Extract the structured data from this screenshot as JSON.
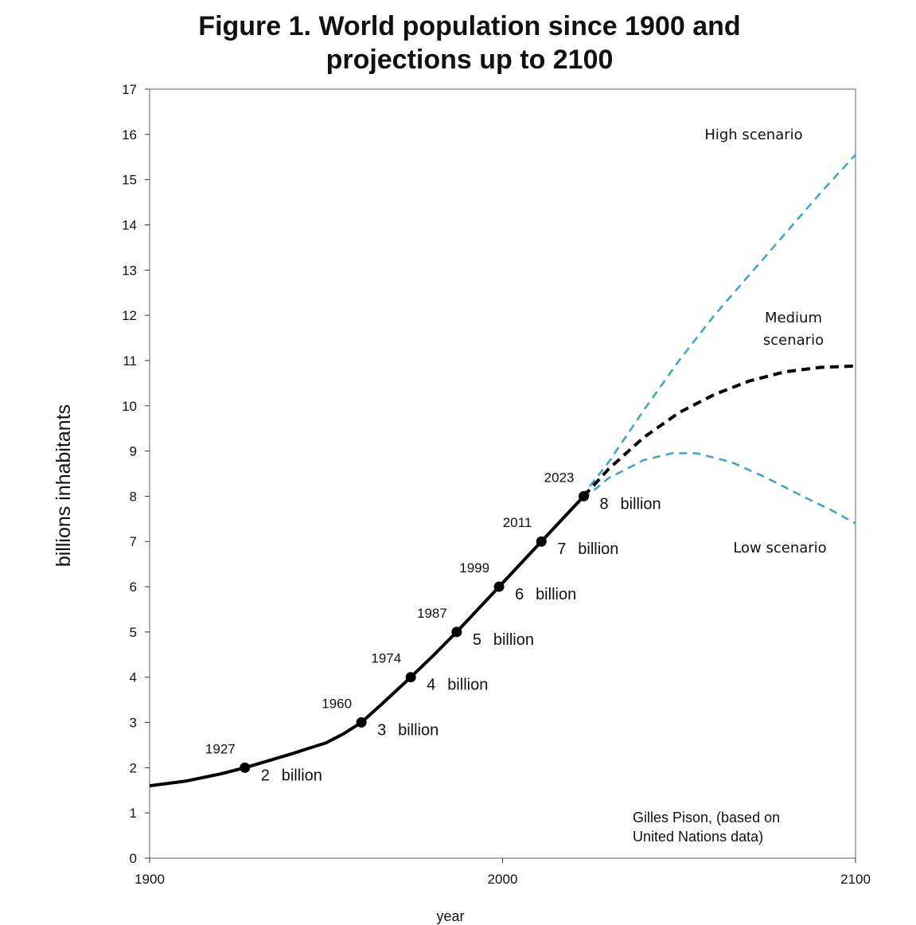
{
  "chart_data": {
    "type": "line",
    "title_line1": "Figure 1. World population since 1900 and",
    "title_line2": "projections up to 2100",
    "xlabel": "year",
    "ylabel": "billions inhabitants",
    "xlim": [
      1900,
      2100
    ],
    "ylim": [
      0,
      17
    ],
    "xticks": [
      "1900",
      "2000",
      "2100"
    ],
    "yticks": [
      "0",
      "1",
      "2",
      "3",
      "4",
      "5",
      "6",
      "7",
      "8",
      "9",
      "10",
      "11",
      "12",
      "13",
      "14",
      "15",
      "16",
      "17"
    ],
    "grid": false,
    "colors": {
      "historical": "#000000",
      "medium": "#000000",
      "high": "#3aa6c4",
      "low": "#3aa6c4"
    },
    "series": [
      {
        "style": "solid",
        "x": [
          1900,
          1910,
          1920,
          1927,
          1940,
          1950,
          1955,
          1960,
          1965,
          1974,
          1980,
          1987,
          1993,
          1999,
          2005,
          2011,
          2017,
          2023
        ],
        "y": [
          1.6,
          1.7,
          1.86,
          2.0,
          2.3,
          2.55,
          2.75,
          3.0,
          3.35,
          4.0,
          4.45,
          5.0,
          5.5,
          6.0,
          6.5,
          7.0,
          7.5,
          8.0
        ]
      },
      {
        "style": "dashed",
        "x": [
          2023,
          2030,
          2040,
          2050,
          2060,
          2070,
          2080,
          2090,
          2100
        ],
        "y": [
          8.0,
          8.6,
          9.3,
          9.85,
          10.25,
          10.55,
          10.75,
          10.85,
          10.88
        ]
      },
      {
        "style": "dashed",
        "x": [
          2020,
          2030,
          2040,
          2050,
          2060,
          2070,
          2080,
          2090,
          2100
        ],
        "y": [
          7.75,
          8.75,
          9.9,
          11.0,
          12.0,
          12.9,
          13.8,
          14.7,
          15.55
        ]
      },
      {
        "style": "dashed",
        "x": [
          2020,
          2030,
          2040,
          2048,
          2055,
          2065,
          2075,
          2085,
          2093,
          2100
        ],
        "y": [
          7.75,
          8.4,
          8.8,
          8.95,
          8.95,
          8.75,
          8.4,
          8.0,
          7.7,
          7.4
        ]
      }
    ],
    "milestones": [
      {
        "year": "1927",
        "value": 2,
        "amount": "2",
        "unit": "billion"
      },
      {
        "year": "1960",
        "value": 3,
        "amount": "3",
        "unit": "billion"
      },
      {
        "year": "1974",
        "value": 4,
        "amount": "4",
        "unit": "billion"
      },
      {
        "year": "1987",
        "value": 5,
        "amount": "5",
        "unit": "billion"
      },
      {
        "year": "1999",
        "value": 6,
        "amount": "6",
        "unit": "billion"
      },
      {
        "year": "2011",
        "value": 7,
        "amount": "7",
        "unit": "billion"
      },
      {
        "year": "2023",
        "value": 8,
        "amount": "8",
        "unit": "billion"
      }
    ],
    "annotations": {
      "high": "High scenario",
      "medium_line1": "Medium",
      "medium_line2": "scenario",
      "low": "Low scenario",
      "credit_line1": "Gilles Pison, (based on",
      "credit_line2": "United Nations data)"
    }
  }
}
